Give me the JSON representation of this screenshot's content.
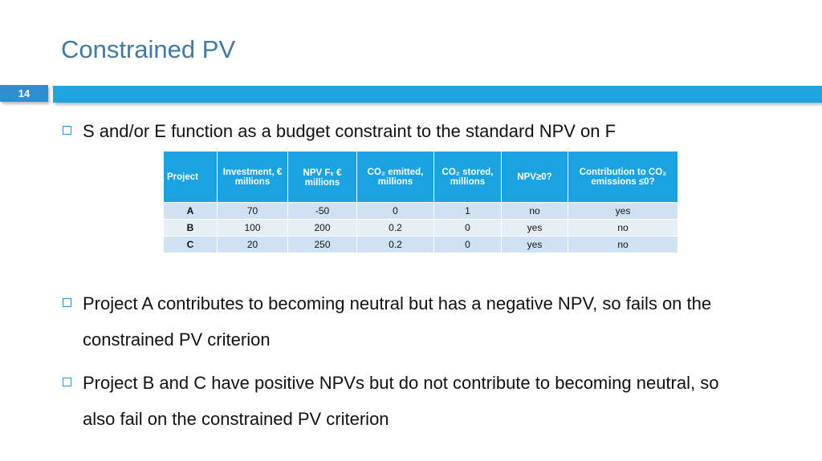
{
  "header": {
    "title": "Constrained PV",
    "slide_number": "14"
  },
  "bullets": [
    "S and/or E function as a budget constraint to the standard NPV on F",
    "Project A contributes to becoming neutral but has a negative NPV, so fails on the constrained PV criterion",
    "Project B and C have positive NPVs but do not contribute to becoming neutral, so also fail on the constrained PV criterion"
  ],
  "table": {
    "columns": [
      "Project",
      "Investment, € millions",
      "NPV Fₜ € millions",
      "CO₂ emitted, millions",
      "CO₂ stored, millions",
      "NPV≥0?",
      "Contribution to CO₂ emissions ≤0?"
    ],
    "rows": [
      [
        "A",
        "70",
        "-50",
        "0",
        "1",
        "no",
        "yes"
      ],
      [
        "B",
        "100",
        "200",
        "0.2",
        "0",
        "yes",
        "no"
      ],
      [
        "C",
        "20",
        "250",
        "0.2",
        "0",
        "yes",
        "no"
      ]
    ]
  }
}
